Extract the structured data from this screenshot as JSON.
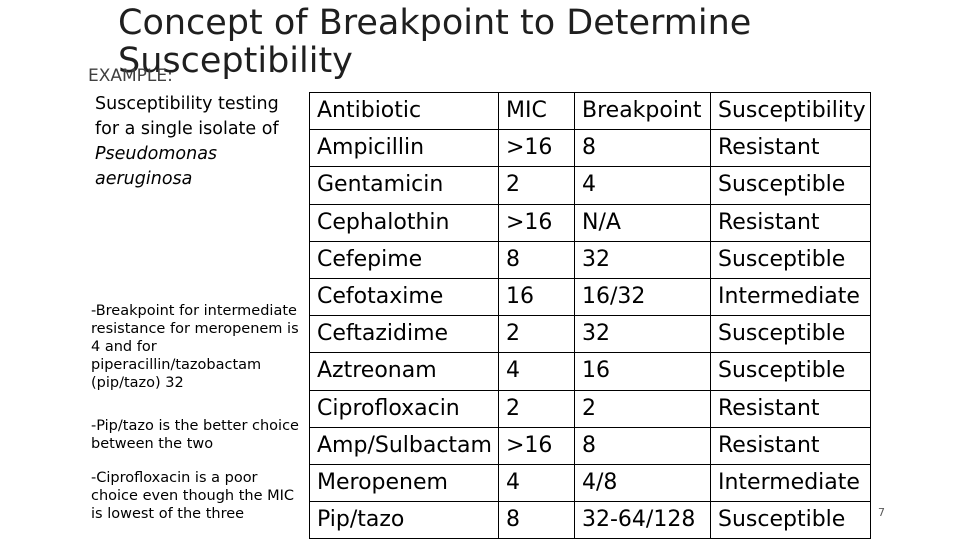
{
  "title": "Concept of Breakpoint to Determine Susceptibility",
  "example_label": "EXAMPLE:",
  "intro": {
    "text": "Susceptibility testing for a single isolate of",
    "organism": "Pseudomonas aeruginosa"
  },
  "notes": [
    "-Breakpoint for intermediate resistance for meropenem is 4 and for piperacillin/tazobactam (pip/tazo) 32",
    "-Pip/tazo is the better choice between the two",
    "-Ciprofloxacin is a poor choice even though the MIC is lowest of the three"
  ],
  "table": {
    "headers": [
      "Antibiotic",
      "MIC",
      "Breakpoint",
      "Susceptibility"
    ],
    "rows": [
      [
        "Ampicillin",
        ">16",
        "8",
        "Resistant"
      ],
      [
        "Gentamicin",
        "2",
        "4",
        "Susceptible"
      ],
      [
        "Cephalothin",
        ">16",
        "N/A",
        "Resistant"
      ],
      [
        "Cefepime",
        "8",
        "32",
        "Susceptible"
      ],
      [
        "Cefotaxime",
        "16",
        "16/32",
        "Intermediate"
      ],
      [
        "Ceftazidime",
        "2",
        "32",
        "Susceptible"
      ],
      [
        "Aztreonam",
        "4",
        "16",
        "Susceptible"
      ],
      [
        "Ciprofloxacin",
        "2",
        "2",
        "Resistant"
      ],
      [
        "Amp/Sulbactam",
        ">16",
        "8",
        "Resistant"
      ],
      [
        "Meropenem",
        "4",
        "4/8",
        "Intermediate"
      ],
      [
        "Pip/tazo",
        "8",
        "32-64/128",
        "Susceptible"
      ]
    ]
  },
  "page_number": "7"
}
